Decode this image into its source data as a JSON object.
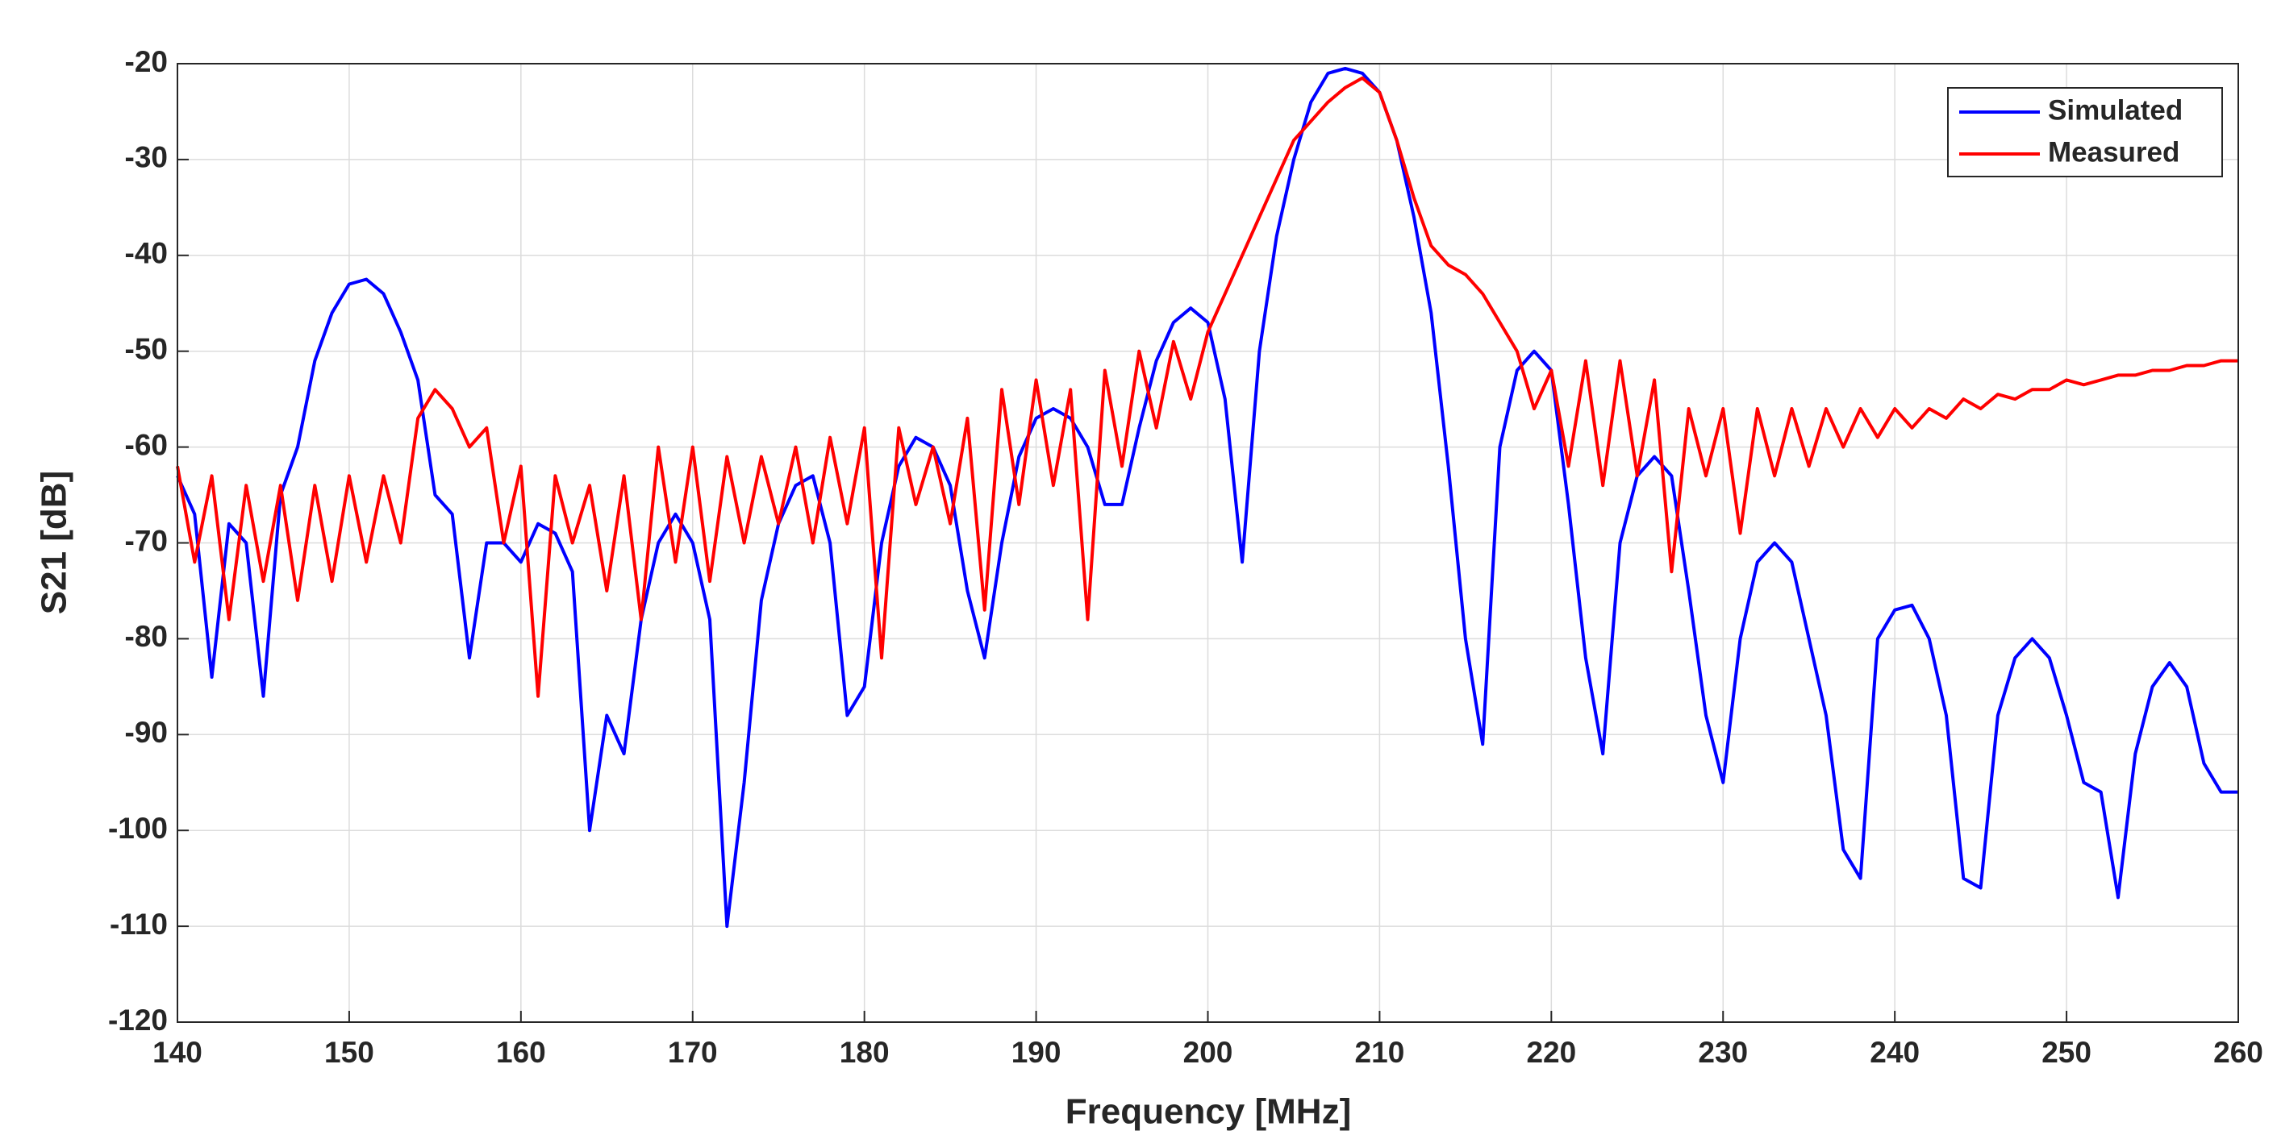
{
  "chart_data": {
    "type": "line",
    "x_label": "Frequency [MHz]",
    "y_label": "S21 [dB]",
    "x": [
      140,
      141,
      142,
      143,
      144,
      145,
      146,
      147,
      148,
      149,
      150,
      151,
      152,
      153,
      154,
      155,
      156,
      157,
      158,
      159,
      160,
      161,
      162,
      163,
      164,
      165,
      166,
      167,
      168,
      169,
      170,
      171,
      172,
      173,
      174,
      175,
      176,
      177,
      178,
      179,
      180,
      181,
      182,
      183,
      184,
      185,
      186,
      187,
      188,
      189,
      190,
      191,
      192,
      193,
      194,
      195,
      196,
      197,
      198,
      199,
      200,
      201,
      202,
      203,
      204,
      205,
      206,
      207,
      208,
      209,
      210,
      211,
      212,
      213,
      214,
      215,
      216,
      217,
      218,
      219,
      220,
      221,
      222,
      223,
      224,
      225,
      226,
      227,
      228,
      229,
      230,
      231,
      232,
      233,
      234,
      235,
      236,
      237,
      238,
      239,
      240,
      241,
      242,
      243,
      244,
      245,
      246,
      247,
      248,
      249,
      250,
      251,
      252,
      253,
      254,
      255,
      256,
      257,
      258,
      259,
      260
    ],
    "series": [
      {
        "name": "Simulated",
        "color": "#0000ff",
        "values": [
          -63,
          -67,
          -84,
          -68,
          -70,
          -86,
          -65,
          -60,
          -51,
          -46,
          -43,
          -42.5,
          -44,
          -48,
          -53,
          -65,
          -67,
          -82,
          -70,
          -70,
          -72,
          -68,
          -69,
          -73,
          -100,
          -88,
          -92,
          -78,
          -70,
          -67,
          -70,
          -78,
          -110,
          -95,
          -76,
          -68,
          -64,
          -63,
          -70,
          -88,
          -85,
          -70,
          -62,
          -59,
          -60,
          -64,
          -75,
          -82,
          -70,
          -61,
          -57,
          -56,
          -57,
          -60,
          -66,
          -66,
          -58,
          -51,
          -47,
          -45.5,
          -47,
          -55,
          -72,
          -50,
          -38,
          -30,
          -24,
          -21,
          -20.5,
          -21,
          -23,
          -28,
          -36,
          -46,
          -62,
          -80,
          -91,
          -60,
          -52,
          -50,
          -52,
          -66,
          -82,
          -92,
          -70,
          -63,
          -61,
          -63,
          -75,
          -88,
          -95,
          -80,
          -72,
          -70,
          -72,
          -80,
          -88,
          -102,
          -105,
          -80,
          -77,
          -76.5,
          -80,
          -88,
          -105,
          -106,
          -88,
          -82,
          -80,
          -82,
          -88,
          -95,
          -96,
          -107,
          -92,
          -85,
          -82.5,
          -85,
          -93,
          -96,
          -96
        ]
      },
      {
        "name": "Measured",
        "color": "#ff0000",
        "values": [
          -62,
          -72,
          -63,
          -78,
          -64,
          -74,
          -64,
          -76,
          -64,
          -74,
          -63,
          -72,
          -63,
          -70,
          -57,
          -54,
          -56,
          -60,
          -58,
          -70,
          -62,
          -86,
          -63,
          -70,
          -64,
          -75,
          -63,
          -78,
          -60,
          -72,
          -60,
          -74,
          -61,
          -70,
          -61,
          -68,
          -60,
          -70,
          -59,
          -68,
          -58,
          -82,
          -58,
          -66,
          -60,
          -68,
          -57,
          -77,
          -54,
          -66,
          -53,
          -64,
          -54,
          -78,
          -52,
          -62,
          -50,
          -58,
          -49,
          -55,
          -48,
          -44,
          -40,
          -36,
          -32,
          -28,
          -26,
          -24,
          -22.5,
          -21.5,
          -23,
          -28,
          -34,
          -39,
          -41,
          -42,
          -44,
          -47,
          -50,
          -56,
          -52,
          -62,
          -51,
          -64,
          -51,
          -63,
          -53,
          -73,
          -56,
          -63,
          -56,
          -69,
          -56,
          -63,
          -56,
          -62,
          -56,
          -60,
          -56,
          -59,
          -56,
          -58,
          -56,
          -57,
          -55,
          -56,
          -54.5,
          -55,
          -54,
          -54,
          -53,
          -53.5,
          -53,
          -52.5,
          -52.5,
          -52,
          -52,
          -51.5,
          -51.5,
          -51,
          -51
        ]
      }
    ],
    "xlim": [
      140,
      260
    ],
    "xticks": [
      140,
      150,
      160,
      170,
      180,
      190,
      200,
      210,
      220,
      230,
      240,
      250,
      260
    ],
    "ylim": [
      -120,
      -20
    ],
    "yticks": [
      -120,
      -110,
      -100,
      -90,
      -80,
      -70,
      -60,
      -50,
      -40,
      -30,
      -20
    ],
    "grid": true,
    "legend": "top-right"
  }
}
